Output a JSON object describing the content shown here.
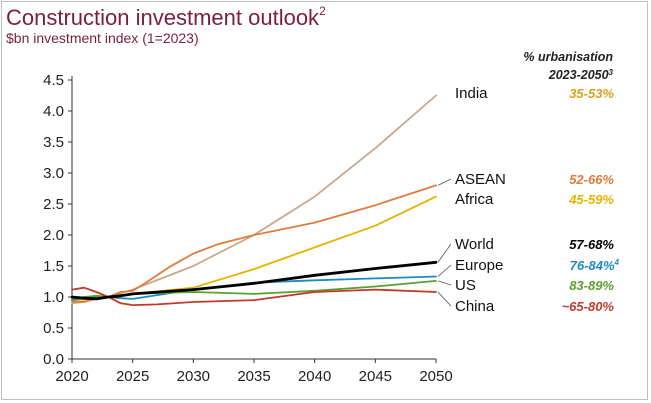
{
  "header": {
    "title": "Construction investment outlook",
    "title_sup": "2",
    "subtitle": "$bn investment index (1=2023)",
    "urbanisation_line1": "% urbanisation",
    "urbanisation_line2": "2023-2050",
    "urbanisation_sup": "3"
  },
  "chart_data": {
    "type": "line",
    "title": "Construction investment outlook",
    "subtitle": "$bn investment index (1=2023)",
    "xlabel": "",
    "ylabel": "",
    "xlim": [
      2020,
      2050
    ],
    "ylim": [
      0,
      4.5
    ],
    "xticks": [
      "2020",
      "2025",
      "2030",
      "2035",
      "2040",
      "2045",
      "2050"
    ],
    "yticks": [
      "0.0",
      "0.5",
      "1.0",
      "1.5",
      "2.0",
      "2.5",
      "3.0",
      "3.5",
      "4.0",
      "4.5"
    ],
    "grid": false,
    "legend": "direct labels at line ends (right)",
    "series": [
      {
        "name": "India",
        "color": "#c8a88a",
        "urbanisation": "35-53%",
        "pct_color": "#d6a21e",
        "x": [
          2020,
          2021,
          2022,
          2023,
          2024,
          2025,
          2030,
          2035,
          2040,
          2045,
          2050
        ],
        "y": [
          0.9,
          0.92,
          0.97,
          1.0,
          1.06,
          1.12,
          1.5,
          2.0,
          2.62,
          3.4,
          4.25
        ]
      },
      {
        "name": "ASEAN",
        "color": "#e07b3c",
        "urbanisation": "52-66%",
        "pct_color": "#e07b3c",
        "x": [
          2020,
          2021,
          2022,
          2023,
          2024,
          2025,
          2026,
          2028,
          2030,
          2032,
          2035,
          2040,
          2045,
          2050
        ],
        "y": [
          0.93,
          0.92,
          0.98,
          1.0,
          1.08,
          1.1,
          1.22,
          1.48,
          1.7,
          1.85,
          2.0,
          2.2,
          2.48,
          2.8
        ]
      },
      {
        "name": "Africa",
        "color": "#e2b400",
        "urbanisation": "45-59%",
        "pct_color": "#e2b400",
        "x": [
          2020,
          2021,
          2022,
          2023,
          2024,
          2025,
          2030,
          2035,
          2040,
          2045,
          2050
        ],
        "y": [
          0.95,
          0.96,
          0.98,
          1.0,
          1.03,
          1.05,
          1.15,
          1.45,
          1.8,
          2.15,
          2.62
        ]
      },
      {
        "name": "World",
        "color": "#000000",
        "urbanisation": "57-68%",
        "pct_color": "#000000",
        "x": [
          2020,
          2021,
          2022,
          2023,
          2024,
          2025,
          2030,
          2035,
          2040,
          2045,
          2050
        ],
        "y": [
          1.0,
          0.98,
          0.97,
          1.0,
          1.02,
          1.05,
          1.12,
          1.22,
          1.35,
          1.46,
          1.56
        ]
      },
      {
        "name": "Europe",
        "color": "#1f8ac0",
        "urbanisation": "76-84%",
        "urbanisation_sup": "4",
        "pct_color": "#1f8ac0",
        "x": [
          2020,
          2021,
          2022,
          2023,
          2024,
          2025,
          2030,
          2035,
          2040,
          2045,
          2050
        ],
        "y": [
          0.95,
          0.99,
          1.0,
          1.0,
          0.98,
          0.97,
          1.12,
          1.23,
          1.27,
          1.3,
          1.33
        ]
      },
      {
        "name": "US",
        "color": "#5aa02c",
        "urbanisation": "83-89%",
        "pct_color": "#5aa02c",
        "x": [
          2020,
          2021,
          2022,
          2023,
          2024,
          2025,
          2030,
          2035,
          2040,
          2045,
          2050
        ],
        "y": [
          0.97,
          1.0,
          1.02,
          1.0,
          1.02,
          1.05,
          1.08,
          1.05,
          1.1,
          1.17,
          1.26
        ]
      },
      {
        "name": "China",
        "color": "#c0392b",
        "urbanisation": "~65-80%",
        "pct_color": "#c0392b",
        "label_color": "#c0392b",
        "x": [
          2020,
          2021,
          2022,
          2023,
          2024,
          2025,
          2027,
          2030,
          2035,
          2040,
          2045,
          2050
        ],
        "y": [
          1.12,
          1.15,
          1.08,
          1.0,
          0.9,
          0.87,
          0.88,
          0.92,
          0.95,
          1.08,
          1.12,
          1.08
        ]
      }
    ]
  }
}
